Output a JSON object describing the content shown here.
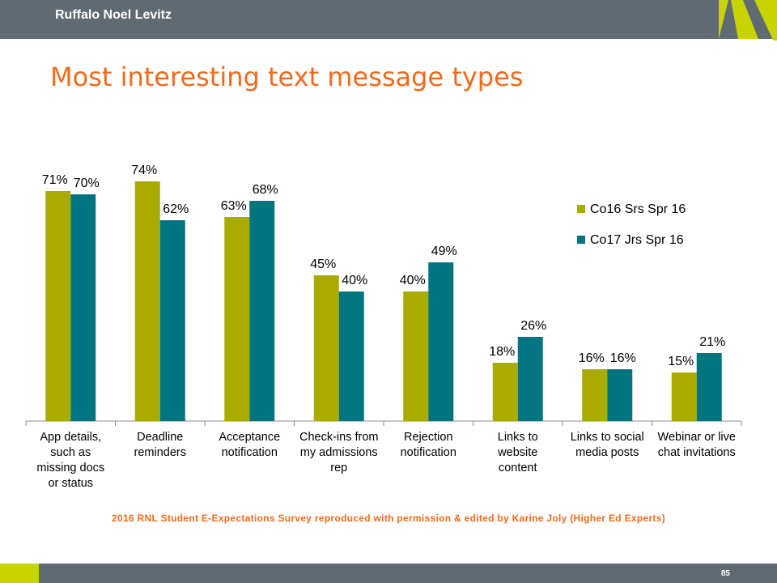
{
  "header": {
    "brand": "Ruffalo Noel Levitz"
  },
  "slide": {
    "title": "Most interesting text message types",
    "page_number": "85"
  },
  "footer": {
    "credit": "2016 RNL Student E-Expectations Survey reproduced with permission & edited by Karine Joly (Higher Ed Experts)"
  },
  "colors": {
    "header_bar": "#5f6a72",
    "accent_green": "#c8d400",
    "title_orange": "#f26a1b",
    "series1": "#a9ab00",
    "series2": "#007580"
  },
  "chart_data": {
    "type": "bar",
    "categories": [
      [
        "App details,",
        "such as",
        "missing docs",
        "or status"
      ],
      [
        "Deadline",
        "reminders"
      ],
      [
        "Acceptance",
        "notification"
      ],
      [
        "Check-ins from",
        "my admissions",
        "rep"
      ],
      [
        "Rejection",
        "notification"
      ],
      [
        "Links to",
        "website",
        "content"
      ],
      [
        "Links to social",
        "media posts"
      ],
      [
        "Webinar or live",
        "chat invitations"
      ]
    ],
    "series": [
      {
        "name": "Co16 Srs Spr 16",
        "color": "#a9ab00",
        "values": [
          71,
          74,
          63,
          45,
          40,
          18,
          16,
          15
        ]
      },
      {
        "name": "Co17 Jrs Spr 16",
        "color": "#007580",
        "values": [
          70,
          62,
          68,
          40,
          49,
          26,
          16,
          21
        ]
      }
    ],
    "value_suffix": "%",
    "ylim": [
      0,
      80
    ],
    "grid": false,
    "legend_position": "right"
  }
}
